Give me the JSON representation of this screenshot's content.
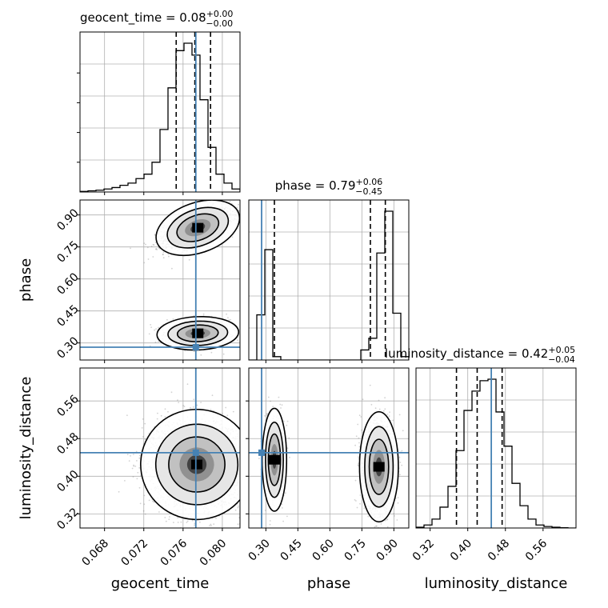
{
  "chart_data": {
    "type": "corner",
    "parameters": [
      {
        "name": "geocent_time",
        "label": "geocent_time",
        "median": "0.08",
        "plus": "+0.00",
        "minus": "−0.00",
        "title_prefix": "geocent_time = ",
        "range": [
          0.0655,
          0.0818
        ],
        "ticks": [
          0.068,
          0.072,
          0.076,
          0.08
        ],
        "tick_labels": [
          "0.068",
          "0.072",
          "0.076",
          "0.080"
        ],
        "truth": 0.0773,
        "quantiles": [
          0.0753,
          0.0772,
          0.0788
        ],
        "hist_edges": [
          0.0655,
          0.0818
        ],
        "hist_counts": [
          0.004,
          0.008,
          0.012,
          0.02,
          0.03,
          0.045,
          0.06,
          0.09,
          0.12,
          0.2,
          0.42,
          0.7,
          0.95,
          1.0,
          0.92,
          0.62,
          0.3,
          0.12,
          0.06,
          0.02
        ]
      },
      {
        "name": "phase",
        "label": "phase",
        "median": "0.79",
        "plus": "+0.06",
        "minus": "−0.45",
        "title_prefix": "phase = ",
        "range": [
          0.22,
          0.97
        ],
        "ticks": [
          0.3,
          0.45,
          0.6,
          0.75,
          0.9
        ],
        "tick_labels": [
          "0.30",
          "0.45",
          "0.60",
          "0.75",
          "0.90"
        ],
        "truth": 0.28,
        "quantiles": [
          0.34,
          0.79,
          0.86
        ],
        "hist_edges": [
          0.22,
          0.97
        ],
        "hist_counts": [
          0,
          0.27,
          0.66,
          0.02,
          0,
          0,
          0,
          0,
          0,
          0,
          0,
          0,
          0,
          0,
          0.06,
          0.13,
          0.64,
          0.89,
          0.28,
          0.02
        ]
      },
      {
        "name": "luminosity_distance",
        "label": "luminosity_distance",
        "median": "0.42",
        "plus": "+0.05",
        "minus": "−0.04",
        "title_prefix": "luminosity_distance = ",
        "range": [
          0.29,
          0.63
        ],
        "ticks": [
          0.32,
          0.4,
          0.48,
          0.56
        ],
        "tick_labels": [
          "0.32",
          "0.40",
          "0.48",
          "0.56"
        ],
        "truth": 0.45,
        "quantiles": [
          0.376,
          0.42,
          0.473
        ],
        "hist_edges": [
          0.29,
          0.63
        ],
        "hist_counts": [
          0.005,
          0.02,
          0.06,
          0.14,
          0.28,
          0.52,
          0.79,
          0.92,
          0.99,
          1.0,
          0.78,
          0.55,
          0.3,
          0.15,
          0.06,
          0.02,
          0.01,
          0.005,
          0.002,
          0
        ]
      }
    ],
    "samples_2d": {
      "geocent_time__phase": {
        "clusters": [
          {
            "cx": 0.0775,
            "cy": 0.84,
            "sx": 0.0017,
            "sy": 0.045,
            "corr": 0.62,
            "n": 2400
          },
          {
            "cx": 0.0775,
            "cy": 0.345,
            "sx": 0.0016,
            "sy": 0.03,
            "corr": 0.1,
            "n": 800
          }
        ]
      },
      "geocent_time__luminosity_distance": {
        "clusters": [
          {
            "cx": 0.0774,
            "cy": 0.425,
            "sx": 0.0022,
            "sy": 0.045,
            "corr": -0.05,
            "n": 3200
          }
        ]
      },
      "phase__luminosity_distance": {
        "clusters": [
          {
            "cx": 0.34,
            "cy": 0.435,
            "sx": 0.022,
            "sy": 0.042,
            "corr": 0.0,
            "n": 800
          },
          {
            "cx": 0.83,
            "cy": 0.42,
            "sx": 0.035,
            "sy": 0.045,
            "corr": 0.0,
            "n": 2400
          }
        ]
      }
    },
    "colors": {
      "truth": "#4682b4",
      "hist": "#000000",
      "points": "#7f7f7f",
      "grid": "#b0b0b0"
    },
    "grid": true
  }
}
